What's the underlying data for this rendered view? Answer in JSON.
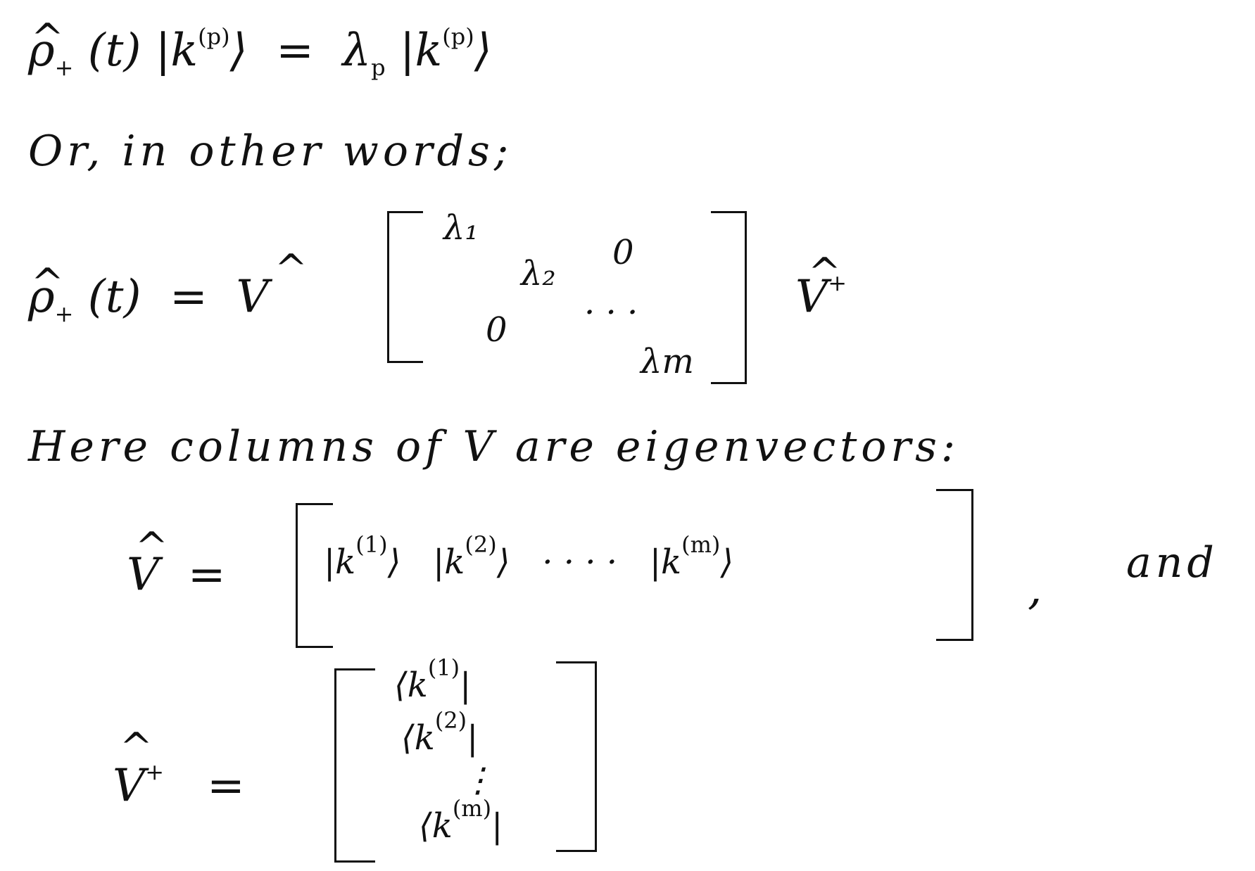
{
  "eq1": {
    "lhs": "ρ",
    "sub": "+",
    "t": "(t)",
    "ket": "|k",
    "ket_sup": "(p)",
    "eq": "=",
    "lambda": "λ",
    "lambda_sub": "p",
    "rhs_ket": "|k",
    "rhs_sup": "(p)",
    "close": "⟩"
  },
  "line2": "Or, in other words;",
  "eq2": {
    "lhs": "ρ",
    "sub": "+",
    "t": "(t)",
    "eq": "=",
    "V": "V",
    "l1": "λ₁",
    "l2": "λ₂",
    "dots": "· · ·",
    "lm": "λm",
    "zero_tr": "0",
    "zero_bl": "0",
    "Vdag": "V",
    "dag": "+"
  },
  "line3": {
    "a": "Here columns of",
    "V": "V",
    "b": "are eigenvectors:"
  },
  "eq3": {
    "V": "V",
    "eq": "=",
    "k1": "|k",
    "k1_sup": "(1)",
    "k2": "|k",
    "k2_sup": "(2)",
    "dots": "· · · ·",
    "km": "|k",
    "km_sup": "(m)",
    "close": "⟩",
    "comma": ",",
    "and": "and"
  },
  "eq4": {
    "V": "V",
    "dag": "+",
    "eq": "=",
    "b1": "⟨k",
    "b1_sup": "(1)",
    "b2": "⟨k",
    "b2_sup": "(2)",
    "vdots": "⋮",
    "bm": "⟨k",
    "bm_sup": "(m)",
    "bar": "|"
  }
}
